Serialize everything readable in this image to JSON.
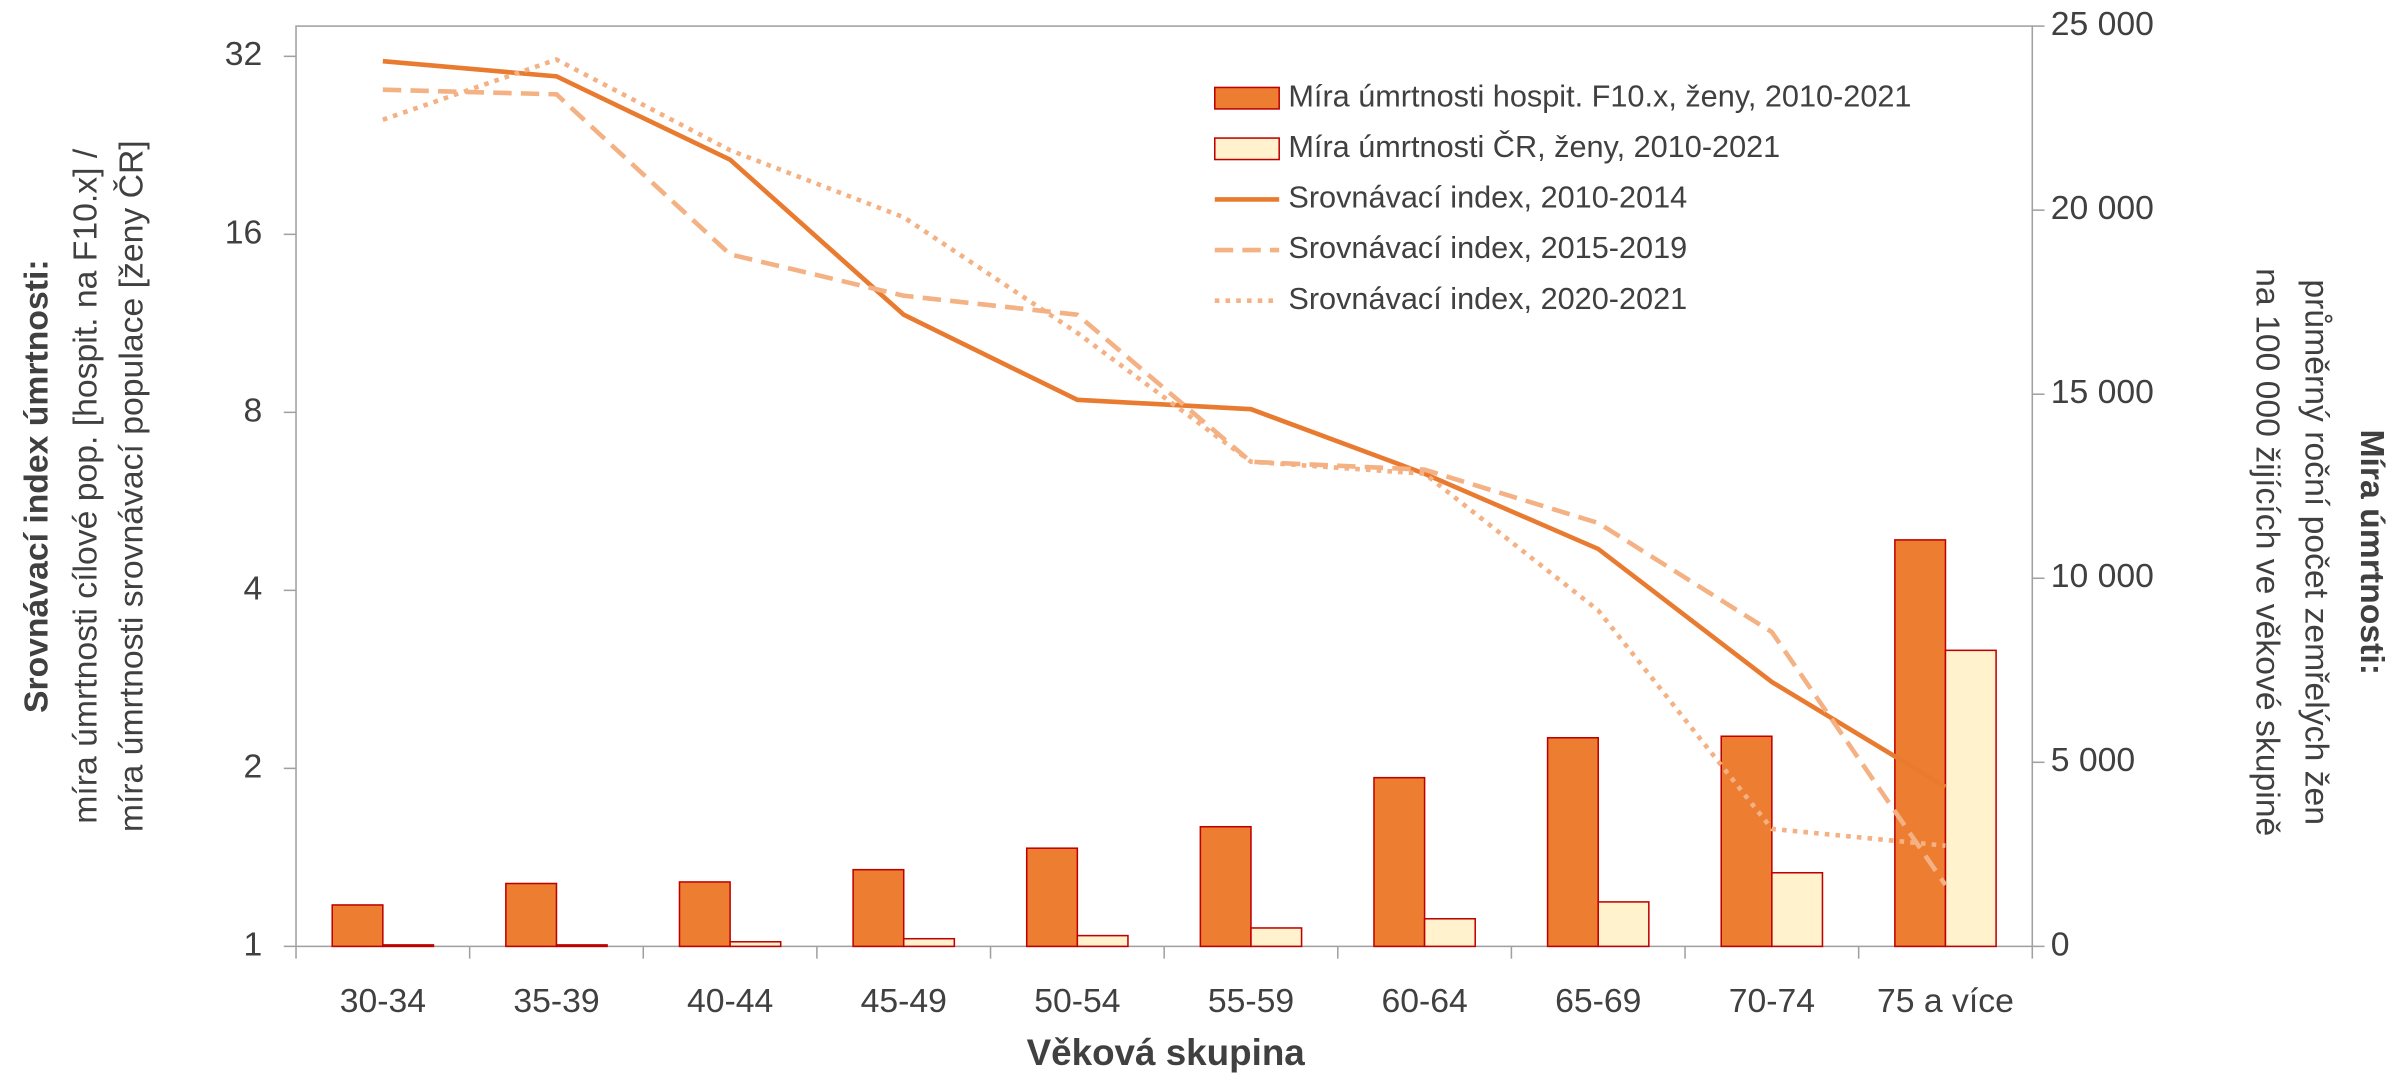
{
  "chart_data": {
    "type": "bar_line",
    "x_label": "Věková skupina",
    "y_label": {
      "title": "Srovnávací index úmrtnosti:",
      "lines": [
        "míra úmrtnosti cílové pop. [hospit. na F10.x] /",
        "míra úmrtnosti srovnávací populace [ženy ČR]"
      ]
    },
    "y2_label": {
      "title": "Míra úmrtnosti:",
      "lines": [
        "průměrný roční počet zemřelých žen",
        "na 100 000 žijících ve věkové skupině"
      ]
    },
    "categories": [
      "30-34",
      "35-39",
      "40-44",
      "45-49",
      "50-54",
      "55-59",
      "60-64",
      "65-69",
      "70-74",
      "75 a více"
    ],
    "ylim": [
      1,
      36
    ],
    "log_scale": true,
    "yticks": [
      1,
      2,
      4,
      8,
      16,
      32
    ],
    "y2lim": [
      0,
      25000
    ],
    "y2ticks": [
      0,
      {
        "value": 5000,
        "label": "5 000"
      },
      {
        "value": 10000,
        "label": "10 000"
      },
      {
        "value": 15000,
        "label": "15 000"
      },
      {
        "value": 20000,
        "label": "20 000"
      },
      {
        "value": 25000,
        "label": "25 000"
      }
    ],
    "series": [
      {
        "name": "Míra úmrtnosti hospit. F10.x, ženy, 2010-2021",
        "kind": "bar",
        "axis": "y2",
        "color": "#ed7d31",
        "values": [
          1125,
          1708,
          1750,
          2083,
          2667,
          3250,
          4583,
          5667,
          5708,
          11042
        ]
      },
      {
        "name": "Míra úmrtnosti ČR, ženy, 2010-2021",
        "kind": "bar",
        "axis": "y2",
        "color": "#fff2cc",
        "values": [
          40,
          40,
          125,
          208,
          292,
          500,
          750,
          1208,
          2000,
          8042
        ]
      },
      {
        "name": "Srovnávací index, 2010-2014",
        "kind": "line",
        "style": "solid",
        "color": "#e97b30",
        "values": [
          31.4,
          29.6,
          21.4,
          11.7,
          8.4,
          8.1,
          6.3,
          4.7,
          2.8,
          1.86
        ]
      },
      {
        "name": "Srovnávací index, 2015-2019",
        "kind": "line",
        "style": "dashed",
        "color": "#f4b183",
        "values": [
          28.1,
          27.6,
          14.8,
          12.6,
          11.7,
          6.6,
          6.4,
          5.2,
          3.4,
          1.27
        ]
      },
      {
        "name": "Srovnávací index, 2020-2021",
        "kind": "line",
        "style": "dotted",
        "color": "#f4b183",
        "values": [
          25.0,
          31.6,
          22.2,
          17.1,
          10.9,
          6.6,
          6.3,
          3.7,
          1.58,
          1.48
        ]
      }
    ]
  }
}
